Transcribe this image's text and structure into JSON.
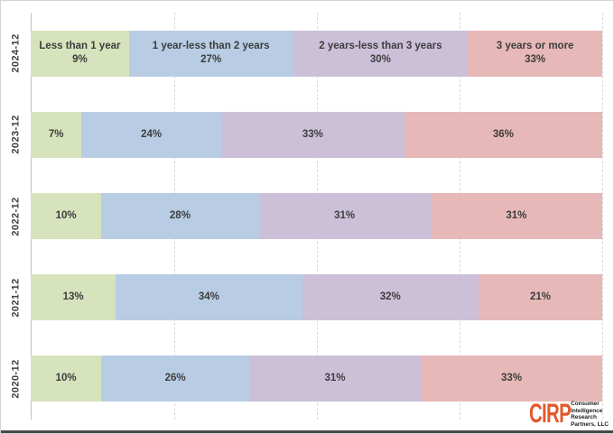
{
  "chart_data": {
    "type": "bar",
    "subtype": "horizontal-100pct-stacked",
    "title": "",
    "xlabel": "",
    "ylabel": "",
    "value_suffix": "%",
    "grid": "vertical-dashed",
    "gridline_positions_pct": [
      25,
      50,
      75,
      100
    ],
    "categories": [
      "2024-12",
      "2023-12",
      "2022-12",
      "2021-12",
      "2020-12"
    ],
    "series": [
      {
        "name": "Less than 1 year",
        "color": "#d6e3bc",
        "values": [
          9,
          7,
          10,
          13,
          10
        ]
      },
      {
        "name": "1 year-less than 2 years",
        "color": "#b8cce4",
        "values": [
          27,
          24,
          28,
          34,
          26
        ]
      },
      {
        "name": "2 years-less than 3 years",
        "color": "#ccc0d9",
        "values": [
          30,
          33,
          31,
          32,
          31
        ]
      },
      {
        "name": "3 years or more",
        "color": "#e6b8b7",
        "values": [
          33,
          36,
          31,
          21,
          33
        ]
      }
    ],
    "labels_note": "series names shown only inside first (top) row segments; all segments show percent value"
  },
  "branding": {
    "logo": "CIRP",
    "logo_color": "#e4582a",
    "tagline_lines": [
      "Consumer",
      "Intelligence",
      "Research",
      "Partners, LLC"
    ]
  },
  "colors": {
    "axis_line": "#c0c0c0",
    "gridline": "#d9d9d9",
    "bar_label_text": "#3d3d3d",
    "frame_border": "#d4d4d4",
    "bottom_strip": "#4a4a4a"
  }
}
